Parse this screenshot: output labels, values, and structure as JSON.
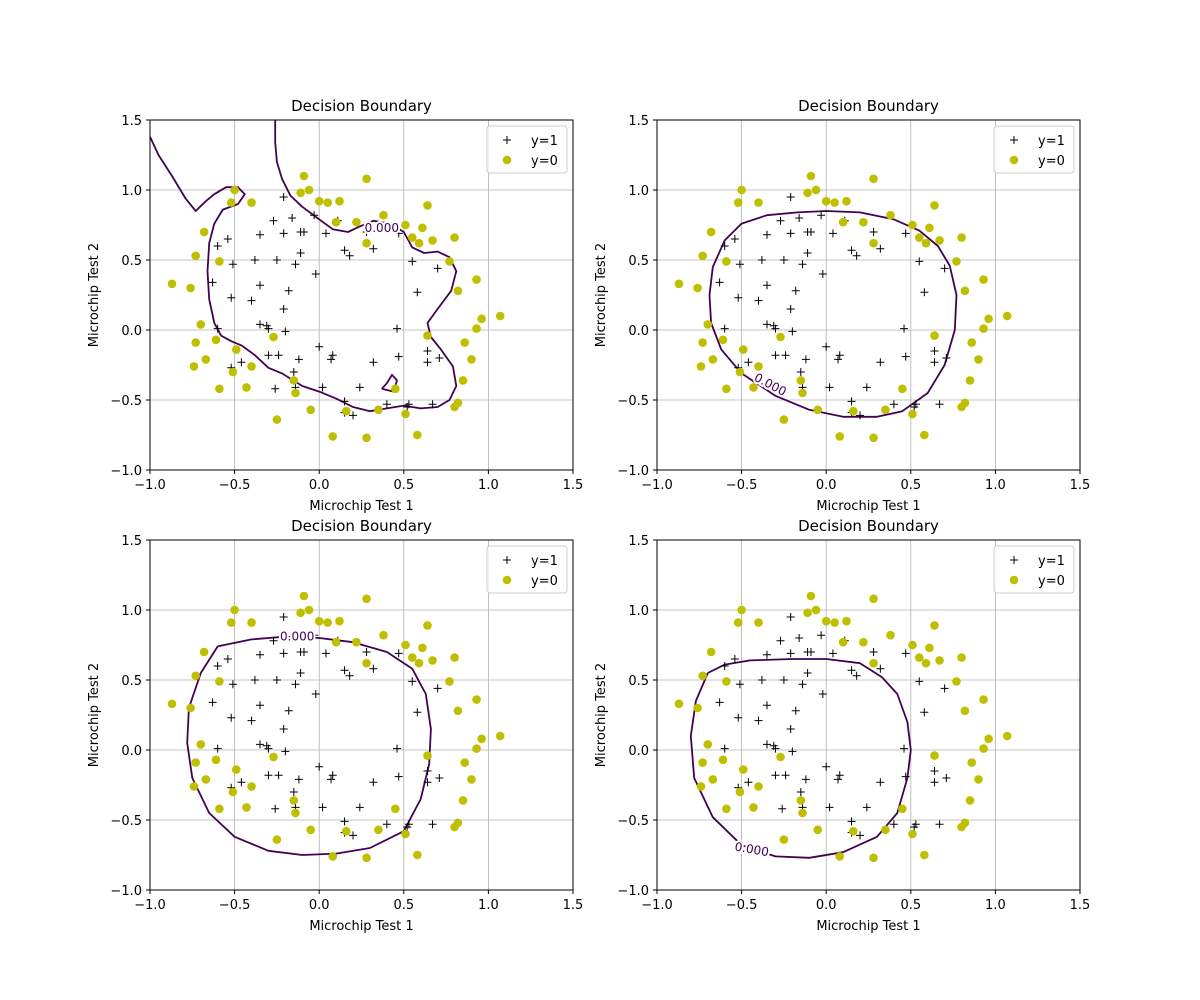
{
  "chart_data": [
    {
      "type": "scatter",
      "title": "Decision Boundary",
      "xlabel": "Microchip Test 1",
      "ylabel": "Microchip Test 2",
      "xlim": [
        -1.0,
        1.5
      ],
      "ylim": [
        -1.0,
        1.5
      ],
      "xticks": [
        "−1.0",
        "−0.5",
        "0.0",
        "0.5",
        "1.0",
        "1.5"
      ],
      "yticks": [
        "−1.0",
        "−0.5",
        "0.0",
        "0.5",
        "1.0",
        "1.5"
      ],
      "grid": true,
      "legend": {
        "position": "top-right",
        "entries": [
          "y=1",
          "y=0"
        ]
      },
      "contour_level_label": "0.000",
      "contour_label_at": [
        0.37,
        0.73
      ]
    },
    {
      "type": "scatter",
      "title": "Decision Boundary",
      "xlabel": "Microchip Test 1",
      "ylabel": "Microchip Test 2",
      "xlim": [
        -1.0,
        1.5
      ],
      "ylim": [
        -1.0,
        1.5
      ],
      "xticks": [
        "−1.0",
        "−0.5",
        "0.0",
        "0.5",
        "1.0",
        "1.5"
      ],
      "yticks": [
        "−1.0",
        "−0.5",
        "0.0",
        "0.5",
        "1.0",
        "1.5"
      ],
      "grid": true,
      "legend": {
        "position": "top-right",
        "entries": [
          "y=1",
          "y=0"
        ]
      },
      "contour_level_label": "0.000",
      "contour_label_at": [
        -0.33,
        -0.39
      ]
    },
    {
      "type": "scatter",
      "title": "Decision Boundary",
      "xlabel": "Microchip Test 1",
      "ylabel": "Microchip Test 2",
      "xlim": [
        -1.0,
        1.5
      ],
      "ylim": [
        -1.0,
        1.5
      ],
      "xticks": [
        "−1.0",
        "−0.5",
        "0.0",
        "0.5",
        "1.0",
        "1.5"
      ],
      "yticks": [
        "−1.0",
        "−0.5",
        "0.0",
        "0.5",
        "1.0",
        "1.5"
      ],
      "grid": true,
      "legend": {
        "position": "top-right",
        "entries": [
          "y=1",
          "y=0"
        ]
      },
      "contour_level_label": "0.000",
      "contour_label_at": [
        -0.13,
        0.81
      ]
    },
    {
      "type": "scatter",
      "title": "Decision Boundary",
      "xlabel": "Microchip Test 1",
      "ylabel": "Microchip Test 2",
      "xlim": [
        -1.0,
        1.5
      ],
      "ylim": [
        -1.0,
        1.5
      ],
      "xticks": [
        "−1.0",
        "−0.5",
        "0.0",
        "0.5",
        "1.0",
        "1.5"
      ],
      "yticks": [
        "−1.0",
        "−0.5",
        "0.0",
        "0.5",
        "1.0",
        "1.5"
      ],
      "grid": true,
      "legend": {
        "position": "top-right",
        "entries": [
          "y=1",
          "y=0"
        ]
      },
      "contour_level_label": "0.000",
      "contour_label_at": [
        -0.44,
        -0.71
      ]
    }
  ],
  "shared": {
    "series": [
      {
        "name": "y=1",
        "marker": "plus",
        "color": "#000000",
        "points": [
          [
            -0.09,
            0.7
          ],
          [
            -0.21,
            0.69
          ],
          [
            -0.25,
            0.5
          ],
          [
            -0.38,
            0.5
          ],
          [
            -0.51,
            0.47
          ],
          [
            -0.52,
            0.23
          ],
          [
            -0.4,
            0.21
          ],
          [
            -0.31,
            0.03
          ],
          [
            -0.6,
            0.01
          ],
          [
            -0.63,
            0.34
          ],
          [
            -0.35,
            0.32
          ],
          [
            -0.02,
            0.4
          ],
          [
            -0.21,
            0.15
          ],
          [
            -0.52,
            -0.27
          ],
          [
            -0.24,
            -0.18
          ],
          [
            -0.12,
            -0.21
          ],
          [
            0.08,
            -0.18
          ],
          [
            0.15,
            -0.51
          ],
          [
            0.24,
            -0.41
          ],
          [
            0.32,
            -0.23
          ],
          [
            0.46,
            0.01
          ],
          [
            0.47,
            -0.19
          ],
          [
            0.53,
            -0.53
          ],
          [
            0.67,
            -0.53
          ],
          [
            0.64,
            -0.15
          ],
          [
            0.64,
            -0.23
          ],
          [
            0.71,
            -0.2
          ],
          [
            0.7,
            0.44
          ],
          [
            0.58,
            0.27
          ],
          [
            0.55,
            0.49
          ],
          [
            0.47,
            0.69
          ],
          [
            0.32,
            0.58
          ],
          [
            0.28,
            0.7
          ],
          [
            0.18,
            0.53
          ],
          [
            0.15,
            0.57
          ],
          [
            0.11,
            0.78
          ],
          [
            -0.03,
            0.82
          ],
          [
            -0.16,
            0.8
          ],
          [
            -0.27,
            0.78
          ],
          [
            -0.35,
            0.68
          ],
          [
            -0.54,
            0.65
          ],
          [
            -0.6,
            0.6
          ],
          [
            -0.21,
            0.95
          ],
          [
            -0.11,
            0.7
          ],
          [
            0.04,
            0.69
          ],
          [
            -0.11,
            0.55
          ],
          [
            -0.14,
            0.47
          ],
          [
            -0.18,
            0.28
          ],
          [
            -0.35,
            0.04
          ],
          [
            -0.3,
            -0.18
          ],
          [
            -0.14,
            -0.41
          ],
          [
            0.02,
            -0.41
          ],
          [
            0.07,
            -0.21
          ],
          [
            0.2,
            -0.61
          ],
          [
            0.4,
            -0.53
          ],
          [
            0.52,
            -0.55
          ],
          [
            -0.2,
            -0.01
          ],
          [
            -0.15,
            -0.3
          ],
          [
            -0.46,
            -0.23
          ],
          [
            -0.3,
            0.01
          ],
          [
            0.15,
            -0.59
          ],
          [
            0.0,
            -0.12
          ],
          [
            -0.26,
            -0.42
          ]
        ]
      },
      {
        "name": "y=0",
        "marker": "circle",
        "color": "#bfbf00",
        "points": [
          [
            -0.5,
            1.0
          ],
          [
            -0.06,
            1.0
          ],
          [
            -0.52,
            0.91
          ],
          [
            -0.09,
            1.1
          ],
          [
            0.28,
            1.08
          ],
          [
            -0.11,
            0.98
          ],
          [
            0.0,
            0.92
          ],
          [
            -0.4,
            0.91
          ],
          [
            0.05,
            0.91
          ],
          [
            0.12,
            0.92
          ],
          [
            0.38,
            0.82
          ],
          [
            0.1,
            0.77
          ],
          [
            0.22,
            0.77
          ],
          [
            0.64,
            0.89
          ],
          [
            0.51,
            0.75
          ],
          [
            0.61,
            0.73
          ],
          [
            0.67,
            0.64
          ],
          [
            0.8,
            0.66
          ],
          [
            0.28,
            0.62
          ],
          [
            0.59,
            0.62
          ],
          [
            -0.68,
            0.7
          ],
          [
            -0.73,
            0.53
          ],
          [
            -0.59,
            0.49
          ],
          [
            -0.87,
            0.33
          ],
          [
            -0.76,
            0.3
          ],
          [
            -0.7,
            0.04
          ],
          [
            -0.73,
            -0.09
          ],
          [
            -0.61,
            -0.07
          ],
          [
            -0.67,
            -0.21
          ],
          [
            -0.74,
            -0.26
          ],
          [
            -0.49,
            -0.14
          ],
          [
            -0.4,
            -0.26
          ],
          [
            -0.51,
            -0.3
          ],
          [
            -0.43,
            -0.41
          ],
          [
            -0.59,
            -0.42
          ],
          [
            -0.27,
            -0.05
          ],
          [
            -0.15,
            -0.36
          ],
          [
            -0.14,
            -0.45
          ],
          [
            -0.25,
            -0.64
          ],
          [
            -0.05,
            -0.57
          ],
          [
            0.08,
            -0.76
          ],
          [
            0.16,
            -0.58
          ],
          [
            0.28,
            -0.77
          ],
          [
            0.35,
            -0.57
          ],
          [
            0.51,
            -0.6
          ],
          [
            0.45,
            -0.42
          ],
          [
            0.58,
            -0.75
          ],
          [
            0.8,
            -0.55
          ],
          [
            0.82,
            -0.52
          ],
          [
            0.85,
            -0.36
          ],
          [
            0.86,
            -0.09
          ],
          [
            0.9,
            -0.21
          ],
          [
            0.93,
            0.01
          ],
          [
            0.96,
            0.08
          ],
          [
            1.07,
            0.1
          ],
          [
            0.93,
            0.36
          ],
          [
            0.82,
            0.28
          ],
          [
            0.77,
            0.49
          ],
          [
            0.64,
            -0.04
          ],
          [
            0.55,
            0.66
          ]
        ]
      }
    ],
    "boundaries": [
      [
        [
          [
            -1.0,
            1.38
          ],
          [
            -0.95,
            1.25
          ],
          [
            -0.87,
            1.1
          ],
          [
            -0.79,
            0.94
          ],
          [
            -0.73,
            0.85
          ],
          [
            -0.67,
            0.92
          ],
          [
            -0.62,
            0.97
          ],
          [
            -0.55,
            1.02
          ],
          [
            -0.48,
            1.02
          ],
          [
            -0.44,
            0.97
          ],
          [
            -0.48,
            0.9
          ],
          [
            -0.57,
            0.86
          ],
          [
            -0.62,
            0.76
          ],
          [
            -0.65,
            0.62
          ],
          [
            -0.66,
            0.42
          ],
          [
            -0.65,
            0.22
          ],
          [
            -0.62,
            0.05
          ],
          [
            -0.58,
            -0.04
          ],
          [
            -0.52,
            -0.08
          ],
          [
            -0.46,
            -0.11
          ],
          [
            -0.38,
            -0.18
          ],
          [
            -0.3,
            -0.27
          ],
          [
            -0.22,
            -0.31
          ],
          [
            -0.1,
            -0.4
          ],
          [
            0.0,
            -0.44
          ],
          [
            0.1,
            -0.49
          ],
          [
            0.2,
            -0.55
          ],
          [
            0.3,
            -0.58
          ],
          [
            0.4,
            -0.56
          ],
          [
            0.5,
            -0.54
          ],
          [
            0.6,
            -0.56
          ],
          [
            0.7,
            -0.55
          ],
          [
            0.77,
            -0.5
          ],
          [
            0.81,
            -0.4
          ],
          [
            0.79,
            -0.26
          ],
          [
            0.72,
            -0.14
          ],
          [
            0.66,
            -0.05
          ],
          [
            0.64,
            0.05
          ],
          [
            0.7,
            0.15
          ],
          [
            0.78,
            0.28
          ],
          [
            0.81,
            0.42
          ],
          [
            0.77,
            0.52
          ],
          [
            0.7,
            0.56
          ],
          [
            0.62,
            0.55
          ],
          [
            0.55,
            0.59
          ],
          [
            0.5,
            0.7
          ],
          [
            0.42,
            0.76
          ],
          [
            0.32,
            0.78
          ],
          [
            0.24,
            0.74
          ],
          [
            0.17,
            0.7
          ],
          [
            0.08,
            0.72
          ],
          [
            0.0,
            0.79
          ],
          [
            -0.1,
            0.88
          ],
          [
            -0.17,
            0.96
          ],
          [
            -0.22,
            1.08
          ],
          [
            -0.25,
            1.2
          ],
          [
            -0.26,
            1.34
          ],
          [
            -0.26,
            1.5
          ]
        ],
        [
          [
            0.37,
            -0.42
          ],
          [
            0.44,
            -0.44
          ],
          [
            0.46,
            -0.36
          ],
          [
            0.43,
            -0.32
          ],
          [
            0.4,
            -0.38
          ],
          [
            0.37,
            -0.42
          ]
        ]
      ],
      [
        [
          [
            -0.17,
            0.84
          ],
          [
            0.0,
            0.85
          ],
          [
            0.2,
            0.84
          ],
          [
            0.4,
            0.79
          ],
          [
            0.55,
            0.71
          ],
          [
            0.66,
            0.6
          ],
          [
            0.73,
            0.46
          ],
          [
            0.77,
            0.25
          ],
          [
            0.76,
            0.0
          ],
          [
            0.7,
            -0.25
          ],
          [
            0.6,
            -0.45
          ],
          [
            0.45,
            -0.58
          ],
          [
            0.3,
            -0.62
          ],
          [
            0.1,
            -0.62
          ],
          [
            -0.1,
            -0.57
          ],
          [
            -0.3,
            -0.47
          ],
          [
            -0.5,
            -0.31
          ],
          [
            -0.62,
            -0.14
          ],
          [
            -0.68,
            0.05
          ],
          [
            -0.69,
            0.25
          ],
          [
            -0.67,
            0.45
          ],
          [
            -0.6,
            0.64
          ],
          [
            -0.5,
            0.76
          ],
          [
            -0.35,
            0.82
          ],
          [
            -0.17,
            0.84
          ]
        ]
      ],
      [
        [
          [
            -0.6,
            0.74
          ],
          [
            -0.4,
            0.79
          ],
          [
            -0.2,
            0.81
          ],
          [
            0.0,
            0.8
          ],
          [
            0.2,
            0.77
          ],
          [
            0.4,
            0.7
          ],
          [
            0.55,
            0.58
          ],
          [
            0.63,
            0.4
          ],
          [
            0.66,
            0.15
          ],
          [
            0.65,
            -0.1
          ],
          [
            0.6,
            -0.35
          ],
          [
            0.5,
            -0.58
          ],
          [
            0.3,
            -0.7
          ],
          [
            0.1,
            -0.74
          ],
          [
            -0.1,
            -0.75
          ],
          [
            -0.3,
            -0.72
          ],
          [
            -0.5,
            -0.62
          ],
          [
            -0.65,
            -0.45
          ],
          [
            -0.75,
            -0.2
          ],
          [
            -0.78,
            0.05
          ],
          [
            -0.77,
            0.3
          ],
          [
            -0.7,
            0.55
          ],
          [
            -0.6,
            0.74
          ]
        ]
      ],
      [
        [
          [
            -0.7,
            0.55
          ],
          [
            -0.6,
            0.61
          ],
          [
            -0.45,
            0.64
          ],
          [
            -0.2,
            0.65
          ],
          [
            0.0,
            0.65
          ],
          [
            0.2,
            0.62
          ],
          [
            0.33,
            0.52
          ],
          [
            0.42,
            0.4
          ],
          [
            0.48,
            0.2
          ],
          [
            0.5,
            0.0
          ],
          [
            0.48,
            -0.2
          ],
          [
            0.42,
            -0.45
          ],
          [
            0.3,
            -0.62
          ],
          [
            0.1,
            -0.73
          ],
          [
            -0.1,
            -0.77
          ],
          [
            -0.3,
            -0.76
          ],
          [
            -0.5,
            -0.68
          ],
          [
            -0.67,
            -0.48
          ],
          [
            -0.78,
            -0.2
          ],
          [
            -0.8,
            0.1
          ],
          [
            -0.77,
            0.35
          ],
          [
            -0.7,
            0.55
          ]
        ]
      ]
    ],
    "boundary_color": "#440154",
    "grid_color": "#b0b0b0"
  }
}
